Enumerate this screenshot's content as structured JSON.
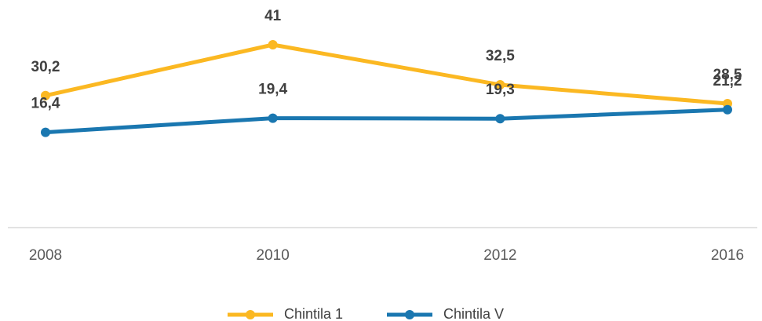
{
  "chart_data": {
    "type": "line",
    "categories": [
      "2008",
      "2010",
      "2012",
      "2016"
    ],
    "series": [
      {
        "name": "Chintila 1",
        "color": "#fbb822",
        "values": [
          30.2,
          41,
          32.5,
          28.5
        ],
        "value_labels": [
          "30,2",
          "41",
          "32,5",
          "28,5"
        ]
      },
      {
        "name": "Chintila V",
        "color": "#1a77b0",
        "axis": "y2",
        "values": [
          16.4,
          19.4,
          19.3,
          21.2
        ],
        "value_labels": [
          "16,4",
          "19,4",
          "19,3",
          "21,2"
        ]
      }
    ],
    "ylim": [
      0,
      45
    ],
    "y2lim": [
      -6,
      39
    ]
  }
}
